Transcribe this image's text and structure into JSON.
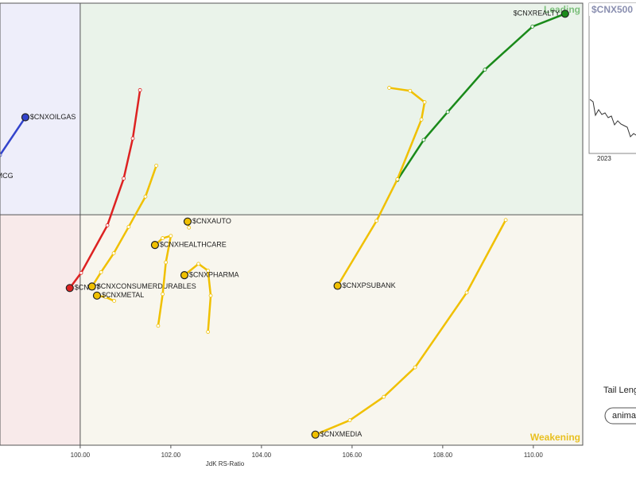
{
  "chart_data": {
    "type": "rrg",
    "x_label": "JdK RS-Ratio",
    "xlim": [
      98.23,
      111.09
    ],
    "ylim": [
      96.95,
      102.8
    ],
    "center": [
      100,
      100
    ],
    "xticks": [
      {
        "value": 100,
        "label": "100.00"
      },
      {
        "value": 102,
        "label": "102.00"
      },
      {
        "value": 104,
        "label": "104.00"
      },
      {
        "value": 106,
        "label": "106.00"
      },
      {
        "value": 108,
        "label": "108.00"
      },
      {
        "value": 110,
        "label": "110.00"
      }
    ],
    "quadrants": {
      "leading": "Leading",
      "weakening": "Weakening"
    },
    "series": [
      {
        "name": "$CNXREALTY",
        "color": "#1a8a1a",
        "x": [
          107.0,
          107.58,
          108.11,
          108.93,
          109.98,
          110.7
        ],
        "y": [
          100.46,
          100.99,
          101.36,
          101.92,
          102.49,
          102.66
        ]
      },
      {
        "name": "$CNXOILGAS",
        "color": "#3344cc",
        "x": [
          98.23,
          98.79
        ],
        "y": [
          100.79,
          101.29
        ]
      },
      {
        "name": "$CNXFMCG",
        "color": "#3344cc",
        "x": [
          97.53
        ],
        "y": [
          100.51
        ]
      },
      {
        "name": "$CNXIT",
        "color": "#dd2222",
        "x": [
          101.32,
          101.16,
          100.96,
          100.6,
          100.02,
          99.77
        ],
        "y": [
          101.65,
          101.01,
          100.48,
          99.86,
          99.23,
          99.03
        ]
      },
      {
        "name": "$CNXPSUBANK",
        "color": "#f0c000",
        "x": [
          106.82,
          107.28,
          107.6,
          107.53,
          107.0,
          106.54,
          105.68
        ],
        "y": [
          101.68,
          101.64,
          101.49,
          101.26,
          100.47,
          99.92,
          99.06
        ]
      },
      {
        "name": "$CNXMEDIA",
        "color": "#f0c000",
        "x": [
          109.39,
          108.53,
          107.39,
          106.7,
          105.95,
          105.19
        ],
        "y": [
          99.93,
          98.97,
          97.98,
          97.59,
          97.28,
          97.09
        ]
      },
      {
        "name": "$CNXCONSUMERDURABLES",
        "color": "#f0c000",
        "x": [
          101.68,
          101.44,
          101.07,
          100.74,
          100.46,
          100.26
        ],
        "y": [
          100.65,
          100.24,
          99.84,
          99.49,
          99.24,
          99.05
        ]
      },
      {
        "name": "$CNXMETAL",
        "color": "#f0c000",
        "x": [
          100.75,
          100.56,
          100.37
        ],
        "y": [
          98.86,
          98.91,
          98.93
        ]
      },
      {
        "name": "$CNXHEALTHCARE",
        "color": "#f0c000",
        "x": [
          101.72,
          101.82,
          101.89,
          102.0,
          101.82,
          101.65
        ],
        "y": [
          98.53,
          98.95,
          99.37,
          99.72,
          99.69,
          99.6
        ]
      },
      {
        "name": "$CNXAUTO",
        "color": "#f0c000",
        "x": [
          102.4,
          102.37
        ],
        "y": [
          99.83,
          99.91
        ]
      },
      {
        "name": "$CNXPHARMA",
        "color": "#f0c000",
        "x": [
          102.82,
          102.88,
          102.82,
          102.61,
          102.3
        ],
        "y": [
          98.45,
          98.93,
          99.26,
          99.35,
          99.2
        ]
      }
    ]
  },
  "side_panel": {
    "title": "$CNX500",
    "year": "2023",
    "tail_label": "Tail Leng",
    "button": "anima"
  }
}
